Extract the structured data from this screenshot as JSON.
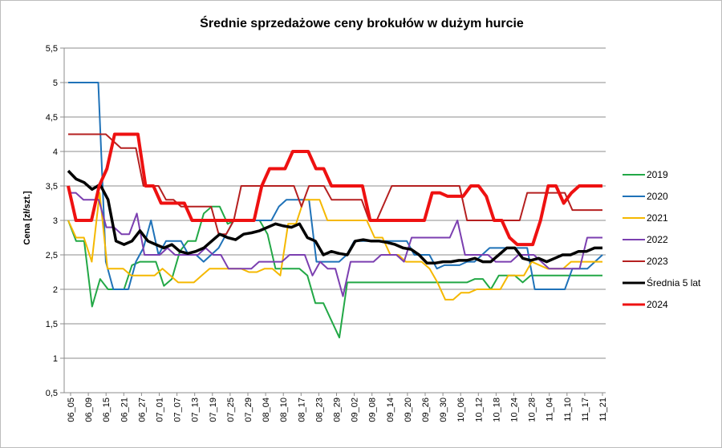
{
  "chart_data": {
    "type": "line",
    "title": "Średnie sprzedażowe ceny brokułów w dużym hurcie",
    "xlabel": "",
    "ylabel": "Cena [zł/szt.]",
    "ylim": [
      0.5,
      5.5
    ],
    "y_ticks": [
      "0,5",
      "1",
      "1,5",
      "2",
      "2,5",
      "3",
      "3,5",
      "4",
      "4,5",
      "5",
      "5,5"
    ],
    "y_tick_values": [
      0.5,
      1,
      1.5,
      2,
      2.5,
      3,
      3.5,
      4,
      4.5,
      5,
      5.5
    ],
    "x_ticks": [
      "06_05",
      "06_09",
      "06_15",
      "06_21",
      "06_27",
      "07_01",
      "07_07",
      "07_13",
      "07_19",
      "07_25",
      "07_29",
      "08_04",
      "08_10",
      "08_17",
      "08_23",
      "08_29",
      "09_02",
      "09_08",
      "09_14",
      "09_20",
      "09_26",
      "09_30",
      "10_06",
      "10_12",
      "10_18",
      "10_24",
      "10_28",
      "11_04",
      "11_10",
      "11_17",
      "11_21"
    ],
    "grid": true,
    "legend_position": "right",
    "series": [
      {
        "name": "2019",
        "color": "#22a846",
        "width": 2,
        "values": [
          3.0,
          2.7,
          2.7,
          1.75,
          2.15,
          2.0,
          2.0,
          2.0,
          2.35,
          2.4,
          2.4,
          2.4,
          2.05,
          2.15,
          2.55,
          2.7,
          2.7,
          3.1,
          3.2,
          3.2,
          2.95,
          3.0,
          3.0,
          3.0,
          3.0,
          2.8,
          2.3,
          2.3,
          2.3,
          2.3,
          2.2,
          1.8,
          1.8,
          1.55,
          1.3,
          2.1,
          2.1,
          2.1,
          2.1,
          2.1,
          2.1,
          2.1,
          2.1,
          2.1,
          2.1,
          2.1,
          2.1,
          2.1,
          2.1,
          2.1,
          2.1,
          2.15,
          2.15,
          2.0,
          2.2,
          2.2,
          2.2,
          2.1,
          2.2,
          2.2,
          2.2,
          2.2,
          2.2,
          2.2,
          2.2,
          2.2,
          2.2,
          2.2
        ]
      },
      {
        "name": "2020",
        "color": "#1f72b8",
        "width": 2,
        "values": [
          5.0,
          5.0,
          5.0,
          5.0,
          5.0,
          2.4,
          2.0,
          2.0,
          2.0,
          2.4,
          2.6,
          3.0,
          2.5,
          2.7,
          2.7,
          2.7,
          2.5,
          2.5,
          2.4,
          2.5,
          2.6,
          2.8,
          3.0,
          3.0,
          3.0,
          3.0,
          3.0,
          3.0,
          3.2,
          3.3,
          3.3,
          3.3,
          3.3,
          2.4,
          2.4,
          2.4,
          2.4,
          2.5,
          2.7,
          2.7,
          2.7,
          2.7,
          2.7,
          2.7,
          2.7,
          2.7,
          2.5,
          2.5,
          2.5,
          2.3,
          2.35,
          2.35,
          2.35,
          2.4,
          2.4,
          2.5,
          2.6,
          2.6,
          2.6,
          2.6,
          2.6,
          2.6,
          2.0,
          2.0,
          2.0,
          2.0,
          2.0,
          2.3,
          2.3,
          2.3,
          2.4,
          2.5
        ]
      },
      {
        "name": "2021",
        "color": "#f5b800",
        "width": 2,
        "values": [
          3.0,
          2.75,
          2.75,
          2.4,
          3.4,
          2.3,
          2.3,
          2.3,
          2.2,
          2.2,
          2.2,
          2.2,
          2.3,
          2.2,
          2.1,
          2.1,
          2.1,
          2.2,
          2.3,
          2.3,
          2.3,
          2.3,
          2.3,
          2.25,
          2.25,
          2.3,
          2.3,
          2.2,
          2.95,
          2.95,
          3.3,
          3.3,
          3.3,
          3.0,
          3.0,
          3.0,
          3.0,
          3.0,
          3.0,
          2.75,
          2.75,
          2.5,
          2.5,
          2.4,
          2.4,
          2.4,
          2.3,
          2.1,
          1.85,
          1.85,
          1.95,
          1.95,
          2.0,
          2.0,
          2.0,
          2.0,
          2.2,
          2.2,
          2.2,
          2.4,
          2.35,
          2.3,
          2.3,
          2.3,
          2.4,
          2.4,
          2.4,
          2.4,
          2.4
        ]
      },
      {
        "name": "2022",
        "color": "#7b3fb0",
        "width": 2,
        "values": [
          3.4,
          3.4,
          3.3,
          3.3,
          3.3,
          2.9,
          2.9,
          2.8,
          2.8,
          3.1,
          2.5,
          2.5,
          2.5,
          2.6,
          2.5,
          2.5,
          2.5,
          2.5,
          2.6,
          2.5,
          2.5,
          2.3,
          2.3,
          2.3,
          2.3,
          2.4,
          2.4,
          2.4,
          2.4,
          2.5,
          2.5,
          2.5,
          2.2,
          2.4,
          2.3,
          2.3,
          1.9,
          2.4,
          2.4,
          2.4,
          2.4,
          2.5,
          2.5,
          2.5,
          2.4,
          2.75,
          2.75,
          2.75,
          2.75,
          2.75,
          2.75,
          3.0,
          2.5,
          2.5,
          2.5,
          2.5,
          2.4,
          2.4,
          2.4,
          2.5,
          2.5,
          2.5,
          2.4,
          2.3,
          2.3,
          2.3,
          2.3,
          2.3,
          2.75,
          2.75,
          2.75
        ]
      },
      {
        "name": "2023",
        "color": "#b52020",
        "width": 2,
        "values": [
          4.25,
          4.25,
          4.25,
          4.25,
          4.25,
          4.25,
          4.15,
          4.05,
          4.05,
          4.05,
          3.5,
          3.5,
          3.5,
          3.3,
          3.3,
          3.2,
          3.2,
          3.2,
          3.2,
          3.2,
          2.8,
          2.8,
          3.0,
          3.5,
          3.5,
          3.5,
          3.5,
          3.5,
          3.5,
          3.5,
          3.5,
          3.2,
          3.5,
          3.5,
          3.5,
          3.3,
          3.3,
          3.3,
          3.3,
          3.3,
          3.0,
          3.0,
          3.25,
          3.5,
          3.5,
          3.5,
          3.5,
          3.5,
          3.5,
          3.5,
          3.5,
          3.5,
          3.5,
          3.0,
          3.0,
          3.0,
          3.0,
          3.0,
          3.0,
          3.0,
          3.0,
          3.4,
          3.4,
          3.4,
          3.4,
          3.4,
          3.4,
          3.15,
          3.15,
          3.15,
          3.15,
          3.15
        ]
      },
      {
        "name": "Średnia 5 lat",
        "color": "#000000",
        "width": 3.5,
        "values": [
          3.72,
          3.6,
          3.55,
          3.45,
          3.52,
          3.3,
          2.7,
          2.65,
          2.7,
          2.85,
          2.7,
          2.65,
          2.6,
          2.65,
          2.55,
          2.52,
          2.55,
          2.6,
          2.7,
          2.8,
          2.75,
          2.72,
          2.8,
          2.82,
          2.85,
          2.9,
          2.95,
          2.92,
          2.9,
          2.95,
          2.75,
          2.7,
          2.5,
          2.55,
          2.52,
          2.5,
          2.7,
          2.72,
          2.7,
          2.7,
          2.68,
          2.65,
          2.6,
          2.58,
          2.5,
          2.38,
          2.38,
          2.4,
          2.4,
          2.42,
          2.42,
          2.45,
          2.4,
          2.4,
          2.5,
          2.6,
          2.6,
          2.45,
          2.42,
          2.45,
          2.4,
          2.45,
          2.5,
          2.5,
          2.55,
          2.55,
          2.6,
          2.6
        ]
      },
      {
        "name": "2024",
        "color": "#ee1111",
        "width": 4,
        "values": [
          3.5,
          3.0,
          3.0,
          3.0,
          3.5,
          3.75,
          4.25,
          4.25,
          4.25,
          4.25,
          3.5,
          3.5,
          3.25,
          3.25,
          3.25,
          3.25,
          3.0,
          3.0,
          3.0,
          3.0,
          3.0,
          3.0,
          3.0,
          3.0,
          3.0,
          3.5,
          3.75,
          3.75,
          3.75,
          4.0,
          4.0,
          4.0,
          3.75,
          3.75,
          3.5,
          3.5,
          3.5,
          3.5,
          3.5,
          3.0,
          3.0,
          3.0,
          3.0,
          3.0,
          3.0,
          3.0,
          3.0,
          3.4,
          3.4,
          3.35,
          3.35,
          3.35,
          3.5,
          3.5,
          3.35,
          3.0,
          3.0,
          2.75,
          2.65,
          2.65,
          2.65,
          3.0,
          3.5,
          3.5,
          3.25,
          3.4,
          3.5,
          3.5,
          3.5,
          3.5
        ]
      }
    ]
  }
}
